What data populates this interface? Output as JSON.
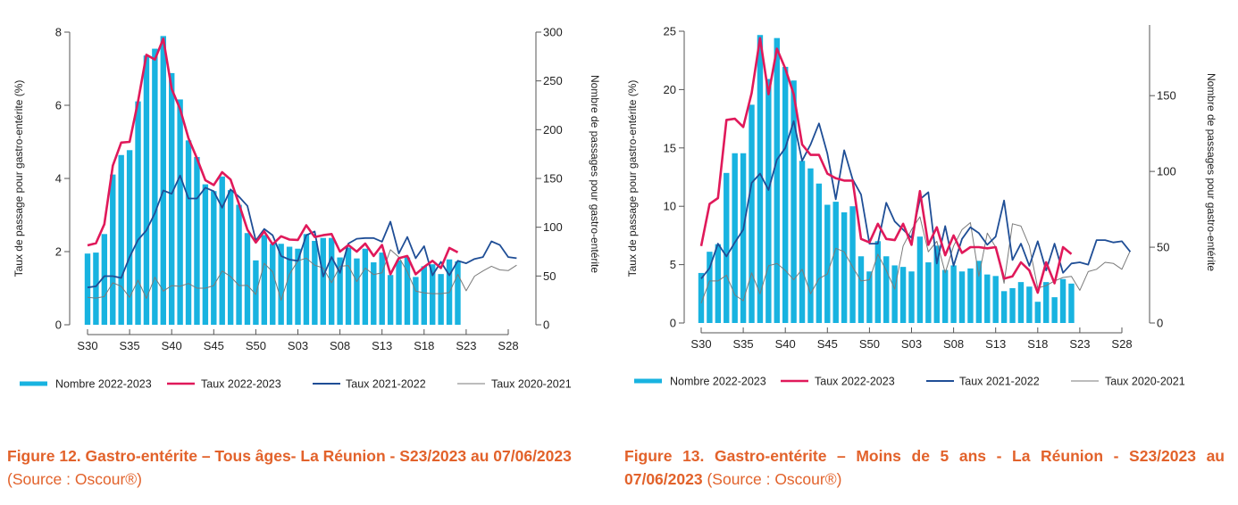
{
  "legend_labels": [
    "Nombre 2022-2023",
    "Taux 2022-2023",
    "Taux 2021-2022",
    "Taux 2020-2021"
  ],
  "colors": {
    "bars": "#18b3e0",
    "taux_2022_2023": "#e0195a",
    "taux_2021_2022": "#1f4e96",
    "taux_2020_2021": "#7a7a7a",
    "caption": "#e2622b"
  },
  "captions": [
    {
      "title": "Figure 12. Gastro-entérite – Tous âges- La Réunion - S23/2023 au 07/06/2023",
      "source": " (Source : Oscour®)"
    },
    {
      "title": "Figure 13. Gastro-entérite – Moins de 5 ans - La Réunion - S23/2023 au 07/06/2023",
      "source": " (Source : Oscour®)"
    }
  ],
  "chart_data": [
    {
      "type": "bar+line",
      "title": "Figure 12. Gastro-entérite – Tous âges- La Réunion - S23/2023 au 07/06/2023",
      "ylabel": "Taux de passage pour gastro-entérite (%)",
      "y2label": "Nombre de passages pour gastro-entérite",
      "ylim": [
        0,
        8
      ],
      "y2lim": [
        0,
        300
      ],
      "yticks": [
        0,
        2,
        4,
        6,
        8
      ],
      "y2ticks": [
        0,
        50,
        100,
        150,
        200,
        250,
        300
      ],
      "xticks": [
        "S30",
        "S35",
        "S40",
        "S45",
        "S50",
        "S03",
        "S08",
        "S13",
        "S18",
        "S23",
        "S28"
      ],
      "weeks": [
        "S30",
        "S31",
        "S32",
        "S33",
        "S34",
        "S35",
        "S36",
        "S37",
        "S38",
        "S39",
        "S40",
        "S41",
        "S42",
        "S43",
        "S44",
        "S45",
        "S46",
        "S47",
        "S48",
        "S49",
        "S50",
        "S51",
        "S52",
        "S01",
        "S02",
        "S03",
        "S04",
        "S05",
        "S06",
        "S07",
        "S08",
        "S09",
        "S10",
        "S11",
        "S12",
        "S13",
        "S14",
        "S15",
        "S16",
        "S17",
        "S18",
        "S19",
        "S20",
        "S21",
        "S22",
        "S23",
        "S24",
        "S25",
        "S26",
        "S27",
        "S28",
        "S29"
      ],
      "grid": false,
      "legend": "bottom",
      "series": [
        {
          "name": "Nombre 2022-2023",
          "axis": "right",
          "kind": "bar",
          "values": [
            73,
            74,
            93,
            154,
            174,
            179,
            229,
            276,
            283,
            296,
            258,
            231,
            189,
            172,
            144,
            137,
            152,
            138,
            123,
            94,
            66,
            92,
            83,
            83,
            80,
            78,
            93,
            86,
            89,
            89,
            69,
            79,
            68,
            78,
            64,
            74,
            51,
            66,
            69,
            49,
            60,
            62,
            52,
            67,
            65
          ]
        },
        {
          "name": "Taux 2022-2023",
          "axis": "left",
          "kind": "line",
          "values": [
            2.17,
            2.23,
            2.75,
            4.35,
            4.98,
            5.0,
            6.1,
            7.38,
            7.25,
            7.82,
            6.45,
            5.9,
            5.1,
            4.55,
            3.95,
            3.82,
            4.17,
            3.97,
            3.3,
            2.6,
            2.25,
            2.55,
            2.2,
            2.42,
            2.33,
            2.32,
            2.72,
            2.4,
            2.45,
            2.48,
            2.0,
            2.18,
            2.0,
            2.22,
            1.88,
            2.18,
            1.38,
            1.82,
            1.88,
            1.38,
            1.58,
            1.75,
            1.55,
            2.1,
            1.98
          ]
        },
        {
          "name": "Taux 2021-2022",
          "axis": "left",
          "kind": "line",
          "values": [
            1.02,
            1.05,
            1.33,
            1.33,
            1.28,
            1.85,
            2.32,
            2.58,
            3.05,
            3.67,
            3.58,
            4.08,
            3.45,
            3.45,
            3.75,
            3.65,
            3.2,
            3.7,
            3.5,
            3.25,
            2.3,
            2.62,
            2.45,
            1.88,
            1.78,
            1.75,
            2.45,
            2.55,
            1.32,
            1.85,
            1.42,
            2.22,
            2.35,
            2.37,
            2.37,
            2.27,
            2.82,
            1.95,
            2.4,
            1.82,
            2.15,
            1.35,
            1.72,
            1.35,
            1.75,
            1.68,
            1.8,
            1.85,
            2.28,
            2.18,
            1.85,
            1.82
          ]
        },
        {
          "name": "Taux 2020-2021",
          "axis": "left",
          "kind": "line",
          "values": [
            0.75,
            0.73,
            0.77,
            1.15,
            1.05,
            0.75,
            1.22,
            0.72,
            1.3,
            0.92,
            1.07,
            1.05,
            1.13,
            1.0,
            1.0,
            1.07,
            1.47,
            1.32,
            1.07,
            1.08,
            0.83,
            1.68,
            1.45,
            0.67,
            1.38,
            1.75,
            1.82,
            1.63,
            1.55,
            1.15,
            1.6,
            1.62,
            1.18,
            1.55,
            1.37,
            1.42,
            2.05,
            1.85,
            1.45,
            0.92,
            0.87,
            0.85,
            0.85,
            0.88,
            1.38,
            0.93,
            1.33,
            1.47,
            1.6,
            1.5,
            1.48,
            1.63
          ]
        }
      ]
    },
    {
      "type": "bar+line",
      "title": "Figure 13. Gastro-entérite – Moins de 5 ans - La Réunion - S23/2023 au 07/06/2023",
      "ylabel": "Taux de passage pour gastro-entérite (%)",
      "y2label": "Nombre de passages pour gastro-entérite",
      "ylim": [
        0,
        25
      ],
      "y2lim": [
        0,
        192.5
      ],
      "yticks": [
        0,
        5,
        10,
        15,
        20,
        25
      ],
      "y2ticks": [
        0,
        50,
        100,
        150
      ],
      "xticks": [
        "S30",
        "S35",
        "S40",
        "S45",
        "S50",
        "S03",
        "S08",
        "S13",
        "S18",
        "S23",
        "S28"
      ],
      "weeks": [
        "S30",
        "S31",
        "S32",
        "S33",
        "S34",
        "S35",
        "S36",
        "S37",
        "S38",
        "S39",
        "S40",
        "S41",
        "S42",
        "S43",
        "S44",
        "S45",
        "S46",
        "S47",
        "S48",
        "S49",
        "S50",
        "S51",
        "S52",
        "S01",
        "S02",
        "S03",
        "S04",
        "S05",
        "S06",
        "S07",
        "S08",
        "S09",
        "S10",
        "S11",
        "S12",
        "S13",
        "S14",
        "S15",
        "S16",
        "S17",
        "S18",
        "S19",
        "S20",
        "S21",
        "S22",
        "S23",
        "S24",
        "S25",
        "S26",
        "S27",
        "S28",
        "S29"
      ],
      "grid": false,
      "legend": "bottom",
      "series": [
        {
          "name": "Nombre 2022-2023",
          "axis": "right",
          "kind": "bar",
          "values": [
            33,
            47,
            52,
            99,
            112,
            112,
            144,
            190,
            161,
            188,
            169,
            160,
            107,
            102,
            92,
            78,
            80,
            73,
            77,
            44,
            34,
            54,
            44,
            38,
            37,
            34,
            57,
            40,
            51,
            35,
            38,
            34,
            36,
            41,
            32,
            31,
            21,
            23,
            27,
            24,
            14,
            27,
            17,
            29,
            26
          ]
        },
        {
          "name": "Taux 2022-2023",
          "axis": "left",
          "kind": "line",
          "values": [
            6.6,
            10.2,
            10.7,
            17.4,
            17.5,
            16.8,
            19.7,
            24.4,
            19.6,
            23.5,
            21.8,
            19.6,
            15.3,
            14.4,
            14.4,
            12.8,
            12.4,
            12.2,
            12.2,
            7.2,
            6.9,
            8.5,
            7.2,
            7.1,
            8.5,
            6.7,
            11.3,
            6.7,
            8.2,
            5.8,
            7.5,
            6.0,
            6.5,
            6.5,
            6.4,
            6.5,
            3.8,
            4.0,
            5.2,
            4.5,
            2.6,
            5.2,
            3.4,
            6.5,
            5.9
          ]
        },
        {
          "name": "Taux 2021-2022",
          "axis": "left",
          "kind": "line",
          "values": [
            3.8,
            4.7,
            6.8,
            5.7,
            6.9,
            8.0,
            12.0,
            12.8,
            11.4,
            14.0,
            15.0,
            17.3,
            13.9,
            15.3,
            17.1,
            14.5,
            10.6,
            14.8,
            12.3,
            11.0,
            6.8,
            6.8,
            10.3,
            8.7,
            8.0,
            7.3,
            10.6,
            11.2,
            5.1,
            8.3,
            4.9,
            7.2,
            8.2,
            7.7,
            6.7,
            7.4,
            10.5,
            5.4,
            6.8,
            4.9,
            7.0,
            4.5,
            6.8,
            4.3,
            5.1,
            5.2,
            5.0,
            7.1,
            7.1,
            6.9,
            7.0,
            6.1
          ]
        },
        {
          "name": "Taux 2020-2021",
          "axis": "left",
          "kind": "line",
          "values": [
            1.7,
            3.6,
            3.6,
            4.1,
            2.4,
            1.9,
            4.3,
            2.5,
            4.9,
            5.1,
            4.5,
            3.7,
            4.6,
            2.5,
            3.8,
            4.2,
            6.4,
            6.1,
            4.8,
            3.6,
            3.7,
            5.9,
            4.5,
            2.9,
            6.6,
            8.0,
            9.1,
            6.1,
            7.0,
            4.3,
            6.6,
            8.0,
            8.6,
            4.0,
            7.7,
            6.5,
            3.4,
            8.5,
            8.3,
            6.6,
            3.0,
            3.2,
            3.6,
            3.9,
            4.0,
            2.8,
            4.4,
            4.6,
            5.2,
            5.1,
            4.6,
            6.2
          ]
        }
      ]
    }
  ]
}
